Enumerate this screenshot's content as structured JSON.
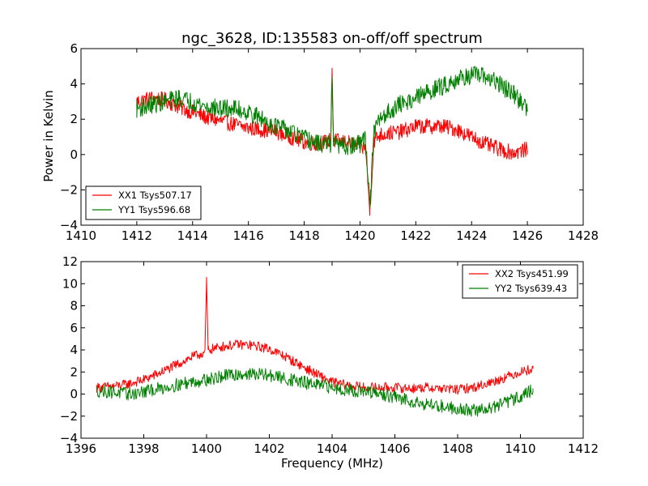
{
  "figure": {
    "title": "ngc_3628, ID:135583 on-off/off spectrum",
    "ylabel_top": "Power in Kelvin",
    "xlabel_bottom": "Frequency (MHz)"
  },
  "colors": {
    "xx": "#ff0000",
    "yy": "#008000"
  },
  "chart_data": [
    {
      "type": "line",
      "title": "ngc_3628, ID:135583 on-off/off spectrum",
      "xlabel": "",
      "ylabel": "Power in Kelvin",
      "xlim": [
        1410,
        1428
      ],
      "ylim": [
        -4,
        6
      ],
      "xticks": [
        1410,
        1412,
        1414,
        1416,
        1418,
        1420,
        1422,
        1424,
        1426,
        1428
      ],
      "yticks": [
        -4,
        -2,
        0,
        2,
        4,
        6
      ],
      "grid": false,
      "legend_position": "lower-left",
      "series": [
        {
          "name": "XX1 Tsys507.17",
          "color": "#ff0000",
          "x": [
            1412,
            1412.5,
            1413,
            1413.5,
            1414,
            1414.5,
            1415,
            1415.5,
            1416,
            1416.5,
            1417,
            1417.5,
            1418,
            1418.5,
            1418.95,
            1419.0,
            1419.05,
            1419.5,
            1420,
            1420.2,
            1420.35,
            1420.5,
            1420.7,
            1421,
            1421.5,
            1422,
            1422.5,
            1423,
            1423.5,
            1424,
            1424.5,
            1425,
            1425.5,
            1426
          ],
          "y": [
            3.0,
            3.2,
            3.1,
            2.7,
            2.4,
            2.1,
            1.9,
            1.7,
            1.5,
            1.4,
            1.3,
            1.0,
            0.7,
            0.6,
            0.8,
            4.9,
            0.8,
            0.7,
            0.5,
            0.3,
            -3.2,
            0.8,
            1.1,
            1.2,
            1.3,
            1.6,
            1.6,
            1.6,
            1.4,
            1.0,
            0.6,
            0.3,
            0.1,
            0.3
          ]
        },
        {
          "name": "YY1 Tsys596.68",
          "color": "#008000",
          "x": [
            1412,
            1412.5,
            1413,
            1413.5,
            1414,
            1414.5,
            1415,
            1415.5,
            1416,
            1416.5,
            1417,
            1417.5,
            1418,
            1418.5,
            1418.95,
            1419.0,
            1419.05,
            1419.5,
            1420,
            1420.2,
            1420.35,
            1420.5,
            1420.7,
            1421,
            1421.5,
            1422,
            1422.5,
            1423,
            1423.5,
            1424,
            1424.5,
            1425,
            1425.5,
            1426
          ],
          "y": [
            2.6,
            2.8,
            3.0,
            3.2,
            3.0,
            2.7,
            2.6,
            2.6,
            2.4,
            2.0,
            1.6,
            1.3,
            0.9,
            0.6,
            0.6,
            4.7,
            0.6,
            0.4,
            0.6,
            1.0,
            -2.8,
            1.2,
            2.0,
            2.4,
            2.9,
            3.2,
            3.6,
            3.9,
            4.3,
            4.5,
            4.4,
            4.0,
            3.4,
            2.6
          ]
        }
      ]
    },
    {
      "type": "line",
      "title": "",
      "xlabel": "Frequency (MHz)",
      "ylabel": "",
      "xlim": [
        1396,
        1412
      ],
      "ylim": [
        -4,
        12
      ],
      "xticks": [
        1396,
        1398,
        1400,
        1402,
        1404,
        1406,
        1408,
        1410,
        1412
      ],
      "yticks": [
        -4,
        -2,
        0,
        2,
        4,
        6,
        8,
        10,
        12
      ],
      "grid": false,
      "legend_position": "upper-right",
      "series": [
        {
          "name": "XX2 Tsys451.99",
          "color": "#ff0000",
          "x": [
            1396.5,
            1397,
            1397.5,
            1398,
            1398.5,
            1399,
            1399.5,
            1399.95,
            1400.0,
            1400.05,
            1400.5,
            1401,
            1401.5,
            1402,
            1402.5,
            1403,
            1403.5,
            1404,
            1404.5,
            1405,
            1405.5,
            1406,
            1406.5,
            1407,
            1407.5,
            1408,
            1408.5,
            1409,
            1409.5,
            1410,
            1410.4
          ],
          "y": [
            0.6,
            0.7,
            0.9,
            1.3,
            1.9,
            2.6,
            3.3,
            3.8,
            10.3,
            4.0,
            4.3,
            4.5,
            4.4,
            4.1,
            3.4,
            2.6,
            1.8,
            1.1,
            0.8,
            0.6,
            0.6,
            0.6,
            0.5,
            0.6,
            0.5,
            0.4,
            0.6,
            1.0,
            1.5,
            2.0,
            2.3
          ]
        },
        {
          "name": "YY2 Tsys639.43",
          "color": "#008000",
          "x": [
            1396.5,
            1397,
            1397.5,
            1398,
            1398.5,
            1399,
            1399.5,
            1399.95,
            1400.0,
            1400.05,
            1400.5,
            1401,
            1401.5,
            1402,
            1402.5,
            1403,
            1403.5,
            1404,
            1404.5,
            1405,
            1405.5,
            1406,
            1406.5,
            1407,
            1407.5,
            1408,
            1408.5,
            1409,
            1409.5,
            1410,
            1410.4
          ],
          "y": [
            0.3,
            0.2,
            0.0,
            0.2,
            0.5,
            0.8,
            1.1,
            1.3,
            1.3,
            1.3,
            1.6,
            1.8,
            1.8,
            1.7,
            1.4,
            1.1,
            0.8,
            0.6,
            0.4,
            0.2,
            0.0,
            -0.3,
            -0.6,
            -0.9,
            -1.1,
            -1.3,
            -1.5,
            -1.3,
            -0.8,
            -0.2,
            0.4
          ]
        }
      ]
    }
  ]
}
